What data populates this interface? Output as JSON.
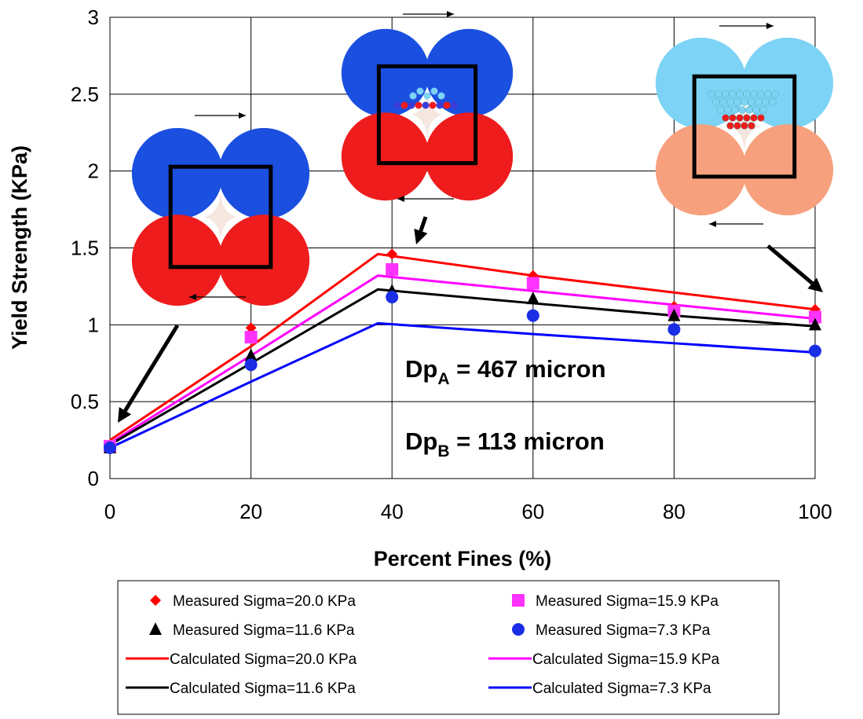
{
  "chart_data": {
    "type": "scatter",
    "title": "",
    "xlabel": "Percent Fines (%)",
    "ylabel": "Yield Strength (KPa)",
    "xlim": [
      0,
      100
    ],
    "ylim": [
      0,
      3
    ],
    "x_ticks": [
      "0",
      "20",
      "40",
      "60",
      "80",
      "100"
    ],
    "y_ticks": [
      "0",
      "0.5",
      "1",
      "1.5",
      "2",
      "2.5",
      "3"
    ],
    "grid": true,
    "legend_position": "bottom",
    "measured_series": [
      {
        "name": "Measured Sigma=20.0 KPa",
        "marker": "diamond",
        "color": "#ff0000",
        "x": [
          0,
          20,
          40,
          60,
          80,
          100
        ],
        "y": [
          0.21,
          0.98,
          1.46,
          1.32,
          1.12,
          1.1
        ]
      },
      {
        "name": "Measured Sigma=15.9 KPa",
        "marker": "square",
        "color": "#ff33ff",
        "x": [
          0,
          20,
          40,
          60,
          80,
          100
        ],
        "y": [
          0.21,
          0.92,
          1.36,
          1.27,
          1.09,
          1.05
        ]
      },
      {
        "name": "Measured Sigma=11.6 KPa",
        "marker": "triangle",
        "color": "#000000",
        "x": [
          0,
          20,
          40,
          60,
          80,
          100
        ],
        "y": [
          0.2,
          0.8,
          1.22,
          1.17,
          1.06,
          1.0
        ]
      },
      {
        "name": "Measured Sigma=7.3 KPa",
        "marker": "circle",
        "color": "#1a2ee6",
        "x": [
          0,
          20,
          40,
          60,
          80,
          100
        ],
        "y": [
          0.2,
          0.74,
          1.18,
          1.06,
          0.97,
          0.83
        ]
      }
    ],
    "calculated_series": [
      {
        "name": "Calculated Sigma=20.0 KPa",
        "color": "#ff0000",
        "x": [
          0,
          20,
          38,
          60,
          80,
          100
        ],
        "y": [
          0.25,
          0.86,
          1.46,
          1.32,
          1.21,
          1.1
        ]
      },
      {
        "name": "Calculated Sigma=15.9 KPa",
        "color": "#ff00ff",
        "x": [
          0,
          20,
          38,
          60,
          80,
          100
        ],
        "y": [
          0.23,
          0.8,
          1.32,
          1.22,
          1.13,
          1.04
        ]
      },
      {
        "name": "Calculated Sigma=11.6 KPa",
        "color": "#000000",
        "x": [
          0,
          20,
          38,
          60,
          80,
          100
        ],
        "y": [
          0.22,
          0.75,
          1.23,
          1.14,
          1.06,
          0.99
        ]
      },
      {
        "name": "Calculated Sigma=7.3 KPa",
        "color": "#0000ff",
        "x": [
          0,
          20,
          38,
          60,
          80,
          100
        ],
        "y": [
          0.2,
          0.63,
          1.01,
          0.94,
          0.88,
          0.82
        ]
      }
    ],
    "annotations": [
      {
        "main": "Dp",
        "sub": "A",
        "rest": " = 467 micron"
      },
      {
        "main": "Dp",
        "sub": "B",
        "rest": " = 113 micron"
      }
    ],
    "inset_colors": {
      "dark_blue": "#1a4fe0",
      "red": "#ee1c1c",
      "light_blue": "#7dd3f5",
      "salmon": "#f7a07e",
      "pale": "#f5e6e0"
    }
  }
}
